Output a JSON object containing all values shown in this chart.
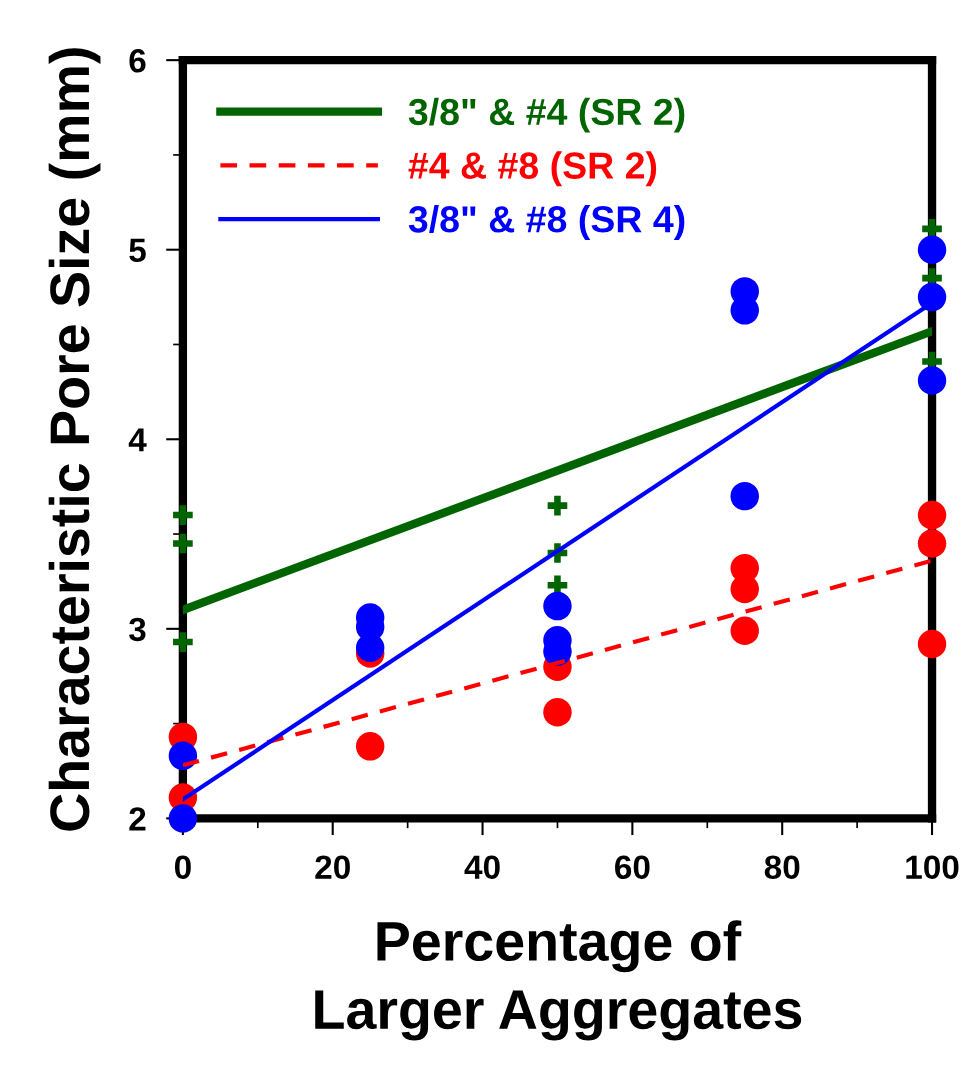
{
  "chart_data": {
    "type": "scatter",
    "xlabel": "Percentage of\nLarger Aggregates",
    "ylabel": "Characteristic Pore Size (mm)",
    "xlim": [
      0,
      100
    ],
    "xticks": [
      0,
      20,
      40,
      60,
      80,
      100
    ],
    "ylim": [
      2,
      6
    ],
    "yticks": [
      2,
      3,
      4,
      5,
      6
    ],
    "grid": false,
    "legend": "top left",
    "series": [
      {
        "marker": "cross",
        "color": "#006400",
        "x": [
          0,
          0,
          0,
          50,
          50,
          50,
          100,
          100,
          100
        ],
        "values": [
          3.6,
          3.45,
          2.93,
          3.65,
          3.4,
          3.23,
          5.11,
          4.85,
          4.41
        ]
      },
      {
        "marker": "circle",
        "color": "#ff0000",
        "x": [
          0,
          0,
          25,
          25,
          50,
          50,
          75,
          75,
          75,
          100,
          100,
          100
        ],
        "values": [
          2.43,
          2.11,
          2.87,
          2.38,
          2.8,
          2.56,
          3.32,
          3.21,
          2.99,
          3.6,
          3.45,
          2.92
        ]
      },
      {
        "marker": "circle",
        "color": "#0000ff",
        "x": [
          0,
          0,
          25,
          25,
          25,
          50,
          50,
          50,
          75,
          75,
          75,
          100,
          100,
          100
        ],
        "values": [
          2.33,
          2.0,
          3.06,
          3.01,
          2.9,
          3.12,
          2.94,
          2.88,
          4.78,
          4.68,
          3.7,
          5.0,
          4.75,
          4.31
        ]
      },
      {
        "type": "line",
        "name": "3/8\" & #4 (SR 2)",
        "color": "#006400",
        "line_style": "solid",
        "x": [
          0,
          100
        ],
        "values": [
          3.1,
          4.57
        ]
      },
      {
        "type": "line",
        "name": "#4 & #8 (SR 2)",
        "color": "#ff0000",
        "line_style": "dashed",
        "x": [
          0,
          100
        ],
        "values": [
          2.28,
          3.36
        ]
      },
      {
        "type": "line",
        "name": "3/8\" & #8 (SR 4)",
        "color": "#0000ff",
        "line_style": "solid",
        "x": [
          0,
          100
        ],
        "values": [
          2.1,
          4.72
        ]
      }
    ]
  }
}
